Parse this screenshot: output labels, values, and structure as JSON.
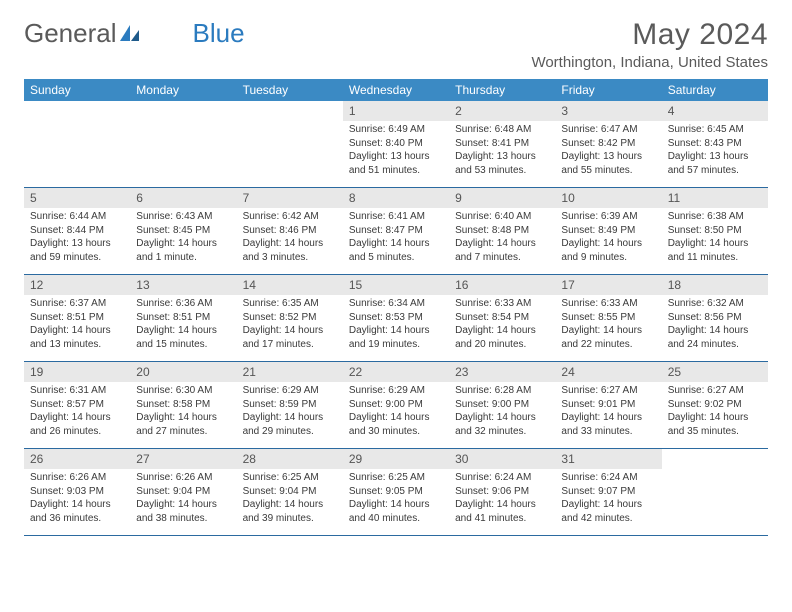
{
  "brand": {
    "part1": "General",
    "part2": "Blue"
  },
  "title": "May 2024",
  "location": "Worthington, Indiana, United States",
  "colors": {
    "header_bg": "#3b8ac4",
    "header_text": "#ffffff",
    "daynum_bg": "#e8e8e8",
    "daynum_text": "#555555",
    "body_text": "#3a3a3a",
    "border": "#2b6aa0",
    "brand_gray": "#5a5a5a",
    "brand_blue": "#2b7bbf"
  },
  "weekdays": [
    "Sunday",
    "Monday",
    "Tuesday",
    "Wednesday",
    "Thursday",
    "Friday",
    "Saturday"
  ],
  "weeks": [
    [
      {
        "n": "",
        "sunrise": "",
        "sunset": "",
        "daylight": ""
      },
      {
        "n": "",
        "sunrise": "",
        "sunset": "",
        "daylight": ""
      },
      {
        "n": "",
        "sunrise": "",
        "sunset": "",
        "daylight": ""
      },
      {
        "n": "1",
        "sunrise": "Sunrise: 6:49 AM",
        "sunset": "Sunset: 8:40 PM",
        "daylight": "Daylight: 13 hours and 51 minutes."
      },
      {
        "n": "2",
        "sunrise": "Sunrise: 6:48 AM",
        "sunset": "Sunset: 8:41 PM",
        "daylight": "Daylight: 13 hours and 53 minutes."
      },
      {
        "n": "3",
        "sunrise": "Sunrise: 6:47 AM",
        "sunset": "Sunset: 8:42 PM",
        "daylight": "Daylight: 13 hours and 55 minutes."
      },
      {
        "n": "4",
        "sunrise": "Sunrise: 6:45 AM",
        "sunset": "Sunset: 8:43 PM",
        "daylight": "Daylight: 13 hours and 57 minutes."
      }
    ],
    [
      {
        "n": "5",
        "sunrise": "Sunrise: 6:44 AM",
        "sunset": "Sunset: 8:44 PM",
        "daylight": "Daylight: 13 hours and 59 minutes."
      },
      {
        "n": "6",
        "sunrise": "Sunrise: 6:43 AM",
        "sunset": "Sunset: 8:45 PM",
        "daylight": "Daylight: 14 hours and 1 minute."
      },
      {
        "n": "7",
        "sunrise": "Sunrise: 6:42 AM",
        "sunset": "Sunset: 8:46 PM",
        "daylight": "Daylight: 14 hours and 3 minutes."
      },
      {
        "n": "8",
        "sunrise": "Sunrise: 6:41 AM",
        "sunset": "Sunset: 8:47 PM",
        "daylight": "Daylight: 14 hours and 5 minutes."
      },
      {
        "n": "9",
        "sunrise": "Sunrise: 6:40 AM",
        "sunset": "Sunset: 8:48 PM",
        "daylight": "Daylight: 14 hours and 7 minutes."
      },
      {
        "n": "10",
        "sunrise": "Sunrise: 6:39 AM",
        "sunset": "Sunset: 8:49 PM",
        "daylight": "Daylight: 14 hours and 9 minutes."
      },
      {
        "n": "11",
        "sunrise": "Sunrise: 6:38 AM",
        "sunset": "Sunset: 8:50 PM",
        "daylight": "Daylight: 14 hours and 11 minutes."
      }
    ],
    [
      {
        "n": "12",
        "sunrise": "Sunrise: 6:37 AM",
        "sunset": "Sunset: 8:51 PM",
        "daylight": "Daylight: 14 hours and 13 minutes."
      },
      {
        "n": "13",
        "sunrise": "Sunrise: 6:36 AM",
        "sunset": "Sunset: 8:51 PM",
        "daylight": "Daylight: 14 hours and 15 minutes."
      },
      {
        "n": "14",
        "sunrise": "Sunrise: 6:35 AM",
        "sunset": "Sunset: 8:52 PM",
        "daylight": "Daylight: 14 hours and 17 minutes."
      },
      {
        "n": "15",
        "sunrise": "Sunrise: 6:34 AM",
        "sunset": "Sunset: 8:53 PM",
        "daylight": "Daylight: 14 hours and 19 minutes."
      },
      {
        "n": "16",
        "sunrise": "Sunrise: 6:33 AM",
        "sunset": "Sunset: 8:54 PM",
        "daylight": "Daylight: 14 hours and 20 minutes."
      },
      {
        "n": "17",
        "sunrise": "Sunrise: 6:33 AM",
        "sunset": "Sunset: 8:55 PM",
        "daylight": "Daylight: 14 hours and 22 minutes."
      },
      {
        "n": "18",
        "sunrise": "Sunrise: 6:32 AM",
        "sunset": "Sunset: 8:56 PM",
        "daylight": "Daylight: 14 hours and 24 minutes."
      }
    ],
    [
      {
        "n": "19",
        "sunrise": "Sunrise: 6:31 AM",
        "sunset": "Sunset: 8:57 PM",
        "daylight": "Daylight: 14 hours and 26 minutes."
      },
      {
        "n": "20",
        "sunrise": "Sunrise: 6:30 AM",
        "sunset": "Sunset: 8:58 PM",
        "daylight": "Daylight: 14 hours and 27 minutes."
      },
      {
        "n": "21",
        "sunrise": "Sunrise: 6:29 AM",
        "sunset": "Sunset: 8:59 PM",
        "daylight": "Daylight: 14 hours and 29 minutes."
      },
      {
        "n": "22",
        "sunrise": "Sunrise: 6:29 AM",
        "sunset": "Sunset: 9:00 PM",
        "daylight": "Daylight: 14 hours and 30 minutes."
      },
      {
        "n": "23",
        "sunrise": "Sunrise: 6:28 AM",
        "sunset": "Sunset: 9:00 PM",
        "daylight": "Daylight: 14 hours and 32 minutes."
      },
      {
        "n": "24",
        "sunrise": "Sunrise: 6:27 AM",
        "sunset": "Sunset: 9:01 PM",
        "daylight": "Daylight: 14 hours and 33 minutes."
      },
      {
        "n": "25",
        "sunrise": "Sunrise: 6:27 AM",
        "sunset": "Sunset: 9:02 PM",
        "daylight": "Daylight: 14 hours and 35 minutes."
      }
    ],
    [
      {
        "n": "26",
        "sunrise": "Sunrise: 6:26 AM",
        "sunset": "Sunset: 9:03 PM",
        "daylight": "Daylight: 14 hours and 36 minutes."
      },
      {
        "n": "27",
        "sunrise": "Sunrise: 6:26 AM",
        "sunset": "Sunset: 9:04 PM",
        "daylight": "Daylight: 14 hours and 38 minutes."
      },
      {
        "n": "28",
        "sunrise": "Sunrise: 6:25 AM",
        "sunset": "Sunset: 9:04 PM",
        "daylight": "Daylight: 14 hours and 39 minutes."
      },
      {
        "n": "29",
        "sunrise": "Sunrise: 6:25 AM",
        "sunset": "Sunset: 9:05 PM",
        "daylight": "Daylight: 14 hours and 40 minutes."
      },
      {
        "n": "30",
        "sunrise": "Sunrise: 6:24 AM",
        "sunset": "Sunset: 9:06 PM",
        "daylight": "Daylight: 14 hours and 41 minutes."
      },
      {
        "n": "31",
        "sunrise": "Sunrise: 6:24 AM",
        "sunset": "Sunset: 9:07 PM",
        "daylight": "Daylight: 14 hours and 42 minutes."
      },
      {
        "n": "",
        "sunrise": "",
        "sunset": "",
        "daylight": ""
      }
    ]
  ]
}
